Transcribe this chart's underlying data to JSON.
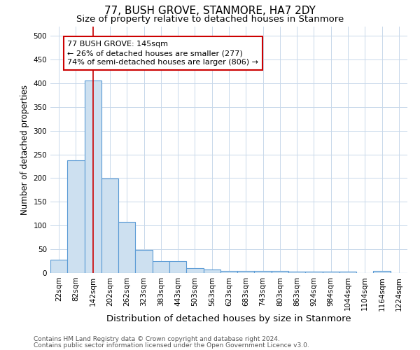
{
  "title": "77, BUSH GROVE, STANMORE, HA7 2DY",
  "subtitle": "Size of property relative to detached houses in Stanmore",
  "xlabel": "Distribution of detached houses by size in Stanmore",
  "ylabel": "Number of detached properties",
  "categories": [
    "22sqm",
    "82sqm",
    "142sqm",
    "202sqm",
    "262sqm",
    "323sqm",
    "383sqm",
    "443sqm",
    "503sqm",
    "563sqm",
    "623sqm",
    "683sqm",
    "743sqm",
    "803sqm",
    "863sqm",
    "924sqm",
    "984sqm",
    "1044sqm",
    "1104sqm",
    "1164sqm",
    "1224sqm"
  ],
  "values": [
    28,
    238,
    405,
    199,
    107,
    48,
    25,
    25,
    11,
    8,
    5,
    5,
    5,
    5,
    3,
    3,
    3,
    3,
    0,
    5,
    0
  ],
  "bar_color": "#cde0f0",
  "bar_edge_color": "#5b9bd5",
  "vline_x_index": 2,
  "vline_color": "#cc0000",
  "annotation_text": "77 BUSH GROVE: 145sqm\n← 26% of detached houses are smaller (277)\n74% of semi-detached houses are larger (806) →",
  "annotation_box_color": "#ffffff",
  "annotation_box_edge": "#cc0000",
  "ylim": [
    0,
    520
  ],
  "yticks": [
    0,
    50,
    100,
    150,
    200,
    250,
    300,
    350,
    400,
    450,
    500
  ],
  "footer_line1": "Contains HM Land Registry data © Crown copyright and database right 2024.",
  "footer_line2": "Contains public sector information licensed under the Open Government Licence v3.0.",
  "bg_color": "#ffffff",
  "plot_bg_color": "#ffffff",
  "title_fontsize": 11,
  "subtitle_fontsize": 9.5,
  "xlabel_fontsize": 9.5,
  "ylabel_fontsize": 8.5,
  "tick_fontsize": 7.5,
  "annotation_fontsize": 8,
  "footer_fontsize": 6.5
}
